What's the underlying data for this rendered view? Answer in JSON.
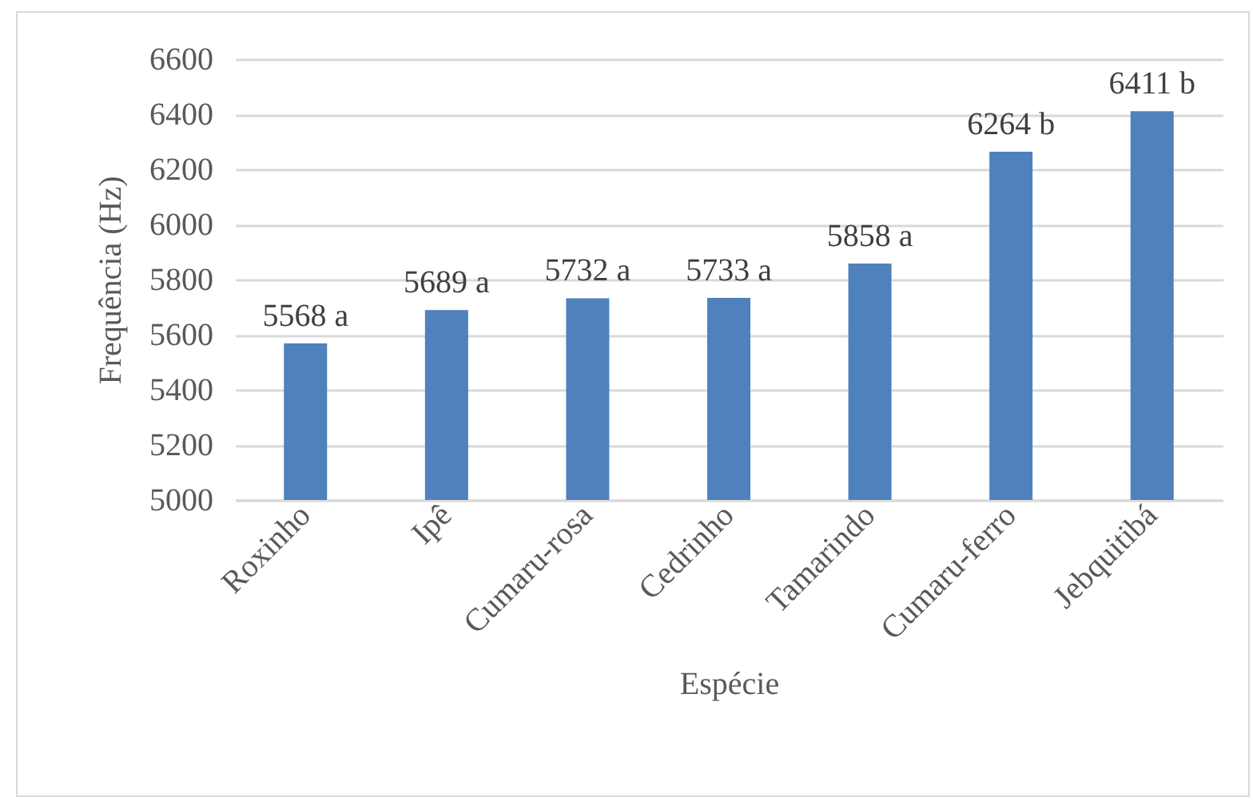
{
  "chart_data": {
    "type": "bar",
    "xlabel": "Espécie",
    "ylabel": "Frequência (Hz)",
    "categories": [
      "Roxinho",
      "Ipê",
      "Cumaru-rosa",
      "Cedrinho",
      "Tamarindo",
      "Cumaru-ferro",
      "Jebquitibá"
    ],
    "values": [
      5568,
      5689,
      5732,
      5733,
      5858,
      6264,
      6411
    ],
    "color": "#4f81bd",
    "value_labels": [
      "5568 a",
      "5689 a",
      "5732 a",
      "5733 a",
      "5858 a",
      "6264 b",
      "6411 b"
    ],
    "ylim": [
      5000,
      6600
    ],
    "yticks": [
      5000,
      5200,
      5400,
      5600,
      5800,
      6000,
      6200,
      6400,
      6600
    ],
    "grid": "y"
  }
}
